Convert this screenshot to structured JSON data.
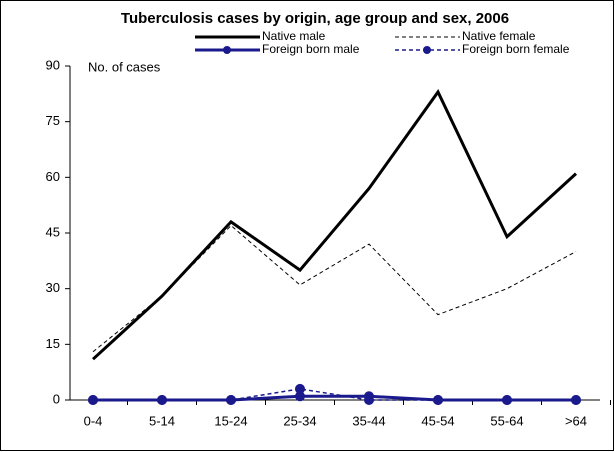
{
  "chart_data": {
    "type": "line",
    "title": "Tuberculosis cases by origin, age group and sex, 2006",
    "y_label": "No. of cases",
    "categories": [
      "0-4",
      "5-14",
      "15-24",
      "25-34",
      "35-44",
      "45-54",
      "55-64",
      ">64"
    ],
    "series": [
      {
        "name": "Native male",
        "color": "#000000",
        "line_width": 3,
        "line_style": "solid",
        "marker": "none",
        "values": [
          11,
          28,
          48,
          35,
          57,
          83,
          44,
          61
        ]
      },
      {
        "name": "Native female",
        "color": "#000000",
        "line_width": 1,
        "line_style": "dashed",
        "marker": "none",
        "values": [
          13,
          28,
          47,
          31,
          42,
          23,
          30,
          40
        ]
      },
      {
        "name": "Foreign born male",
        "color": "#1a1a8c",
        "line_width": 3,
        "line_style": "solid",
        "marker": "circle",
        "values": [
          0,
          0,
          0,
          1,
          1,
          0,
          0,
          0
        ]
      },
      {
        "name": "Foreign born female",
        "color": "#1a1a8c",
        "line_width": 1.5,
        "line_style": "dashed",
        "marker": "circle",
        "values": [
          0,
          0,
          0,
          3,
          0,
          0,
          0,
          0
        ]
      }
    ],
    "ylim": [
      0,
      90
    ],
    "yticks": [
      0,
      15,
      30,
      45,
      60,
      75,
      90
    ],
    "grid": false,
    "legend": "top"
  }
}
